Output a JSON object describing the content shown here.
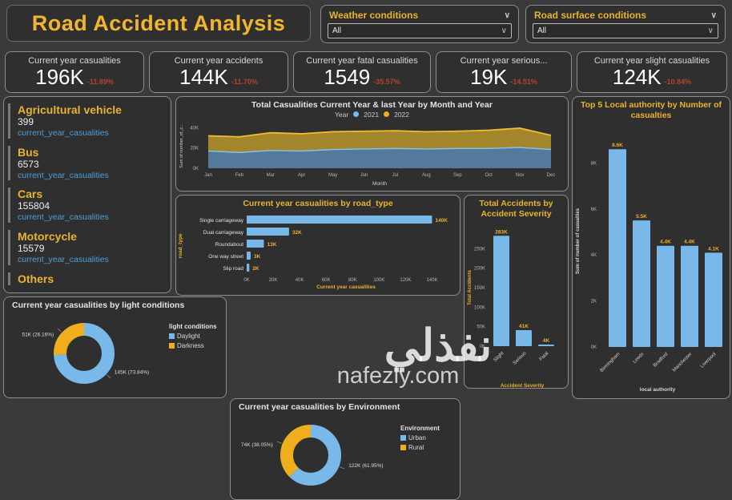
{
  "header": {
    "title": "Road Accident Analysis",
    "slicers": [
      {
        "label": "Weather conditions",
        "value": "All"
      },
      {
        "label": "Road surface conditions",
        "value": "All"
      }
    ]
  },
  "kpis": [
    {
      "label": "Current year casualities",
      "value": "196K",
      "delta": "-11.89%"
    },
    {
      "label": "Current year accidents",
      "value": "144K",
      "delta": "-11.70%"
    },
    {
      "label": "Current year fatal casualities",
      "value": "1549",
      "delta": "-35.57%"
    },
    {
      "label": "Current year serious...",
      "value": "19K",
      "delta": "-14.51%"
    },
    {
      "label": "Current year slight casualities",
      "value": "124K",
      "delta": "-10.84%"
    }
  ],
  "vehicle_list": {
    "items": [
      {
        "name": "Agricultural vehicle",
        "value": "399",
        "metric": "current_year_casualities"
      },
      {
        "name": "Bus",
        "value": "6573",
        "metric": "current_year_casualities"
      },
      {
        "name": "Cars",
        "value": "155804",
        "metric": "current_year_casualities"
      },
      {
        "name": "Motorcycle",
        "value": "15579",
        "metric": "current_year_casualities"
      },
      {
        "name": "Others",
        "value": "",
        "metric": ""
      }
    ]
  },
  "chart_data": [
    {
      "type": "area",
      "stacked": true,
      "title": "Total Casualities Current Year & last Year by Month and Year",
      "title_color": "#e4e4e4",
      "legend_title": "Year",
      "x": [
        "Jan",
        "Feb",
        "Mar",
        "Apr",
        "May",
        "Jun",
        "Jul",
        "Aug",
        "Sep",
        "Oct",
        "Nov",
        "Dec"
      ],
      "series": [
        {
          "name": "2021",
          "color_fill": "#54799a",
          "color_line": "#86c5ef",
          "values": [
            17,
            15.5,
            17.5,
            17,
            18.5,
            19,
            19.5,
            19,
            19.5,
            19.5,
            20.5,
            18.5
          ]
        },
        {
          "name": "2022",
          "color_fill": "#a3862c",
          "color_line": "#eebe31",
          "values": [
            15,
            15.5,
            17.5,
            17,
            17.5,
            17.5,
            17.5,
            17,
            17,
            18,
            19,
            14
          ]
        }
      ],
      "unit": "K",
      "ylim": [
        0,
        45
      ],
      "yticks": [
        [
          0,
          "0K"
        ],
        [
          20,
          "20K"
        ],
        [
          40,
          "40K"
        ]
      ],
      "xlabel": "Month",
      "ylabel": "Sum of number_of_c..."
    },
    {
      "type": "bar",
      "orientation": "horizontal",
      "title": "Current year casualities by road_type",
      "title_color": "#eab32c",
      "categories": [
        "Single carriageway",
        "Dual carriageway",
        "Roundabout",
        "One way street",
        "Slip road"
      ],
      "values": [
        140,
        32,
        13,
        3,
        2
      ],
      "labels": [
        "140K",
        "32K",
        "13K",
        "3K",
        "2K"
      ],
      "unit": "K",
      "bar_color": "#79b9ea",
      "label_color": "#e9b02c",
      "xlim": [
        0,
        150
      ],
      "xticks": [
        [
          0,
          "0K"
        ],
        [
          20,
          "20K"
        ],
        [
          40,
          "40K"
        ],
        [
          60,
          "60K"
        ],
        [
          80,
          "80K"
        ],
        [
          100,
          "100K"
        ],
        [
          120,
          "120K"
        ],
        [
          140,
          "140K"
        ]
      ],
      "xlabel": "Current year casualities",
      "ylabel": "road_type",
      "axis_title_color": "#e9b02c"
    },
    {
      "type": "bar",
      "orientation": "vertical",
      "title": "Total Accidents by Accident Severity",
      "title_color": "#eab32c",
      "categories": [
        "Slight",
        "Serious",
        "Fatal"
      ],
      "values": [
        283,
        41,
        4
      ],
      "labels": [
        "283K",
        "41K",
        "4K"
      ],
      "unit": "K",
      "bar_color": "#79b9ea",
      "label_color": "#e9b02c",
      "ylim": [
        0,
        300
      ],
      "yticks": [
        [
          0,
          "0K"
        ],
        [
          50,
          "50K"
        ],
        [
          100,
          "100K"
        ],
        [
          150,
          "150K"
        ],
        [
          200,
          "200K"
        ],
        [
          250,
          "250K"
        ]
      ],
      "xlabel": "Accident Severity",
      "ylabel": "Total Accidents",
      "axis_title_color": "#e9b02c"
    },
    {
      "type": "bar",
      "orientation": "vertical",
      "title": "Top 5 Local authority by Number of casualties",
      "title_color": "#eab32c",
      "categories": [
        "Birmingham",
        "Leeds",
        "Bradford",
        "Manchester",
        "Liverpool"
      ],
      "values": [
        8.6,
        5.5,
        4.4,
        4.4,
        4.1
      ],
      "labels": [
        "8.6K",
        "5.5K",
        "4.4K",
        "4.4K",
        "4.1K"
      ],
      "unit": "K",
      "bar_color": "#79b9ea",
      "label_color": "#e9b02c",
      "ylim": [
        0,
        9.2
      ],
      "yticks": [
        [
          0,
          "0K"
        ],
        [
          2,
          "2K"
        ],
        [
          4,
          "4K"
        ],
        [
          6,
          "6K"
        ],
        [
          8,
          "8K"
        ]
      ],
      "xlabel": "local authority",
      "ylabel": "Sum of number of casualties",
      "axis_title_color": "#d6d6d6"
    },
    {
      "type": "pie",
      "donut": true,
      "title": "Current year casualities by light conditions",
      "title_color": "#e4e4e4",
      "legend_title": "light conditions",
      "slices": [
        {
          "name": "Daylight",
          "value": 145,
          "label": "145K (73.84%)",
          "color": "#79b9ea"
        },
        {
          "name": "Darkness",
          "value": 51,
          "label": "51K (26.16%)",
          "color": "#f0ad1e"
        }
      ],
      "unit": "K"
    },
    {
      "type": "pie",
      "donut": true,
      "title": "Current year casualities by Environment",
      "title_color": "#e4e4e4",
      "legend_title": "Environment",
      "slices": [
        {
          "name": "Urban",
          "value": 122,
          "label": "122K (61.95%)",
          "color": "#79b9ea"
        },
        {
          "name": "Rural",
          "value": 74,
          "label": "74K (38.05%)",
          "color": "#f0ad1e"
        }
      ],
      "unit": "K"
    }
  ],
  "watermark": {
    "arabic": "نفذلي",
    "domain": "nafezly.com"
  },
  "colors": {
    "background": "#3a3a3a",
    "panel": "#2f2f2f",
    "panel_border": "#8d8d8d",
    "accent_gold": "#eab32c",
    "bar_blue": "#79b9ea",
    "link_blue": "#4f9fd8",
    "delta_red": "#b2432e"
  }
}
